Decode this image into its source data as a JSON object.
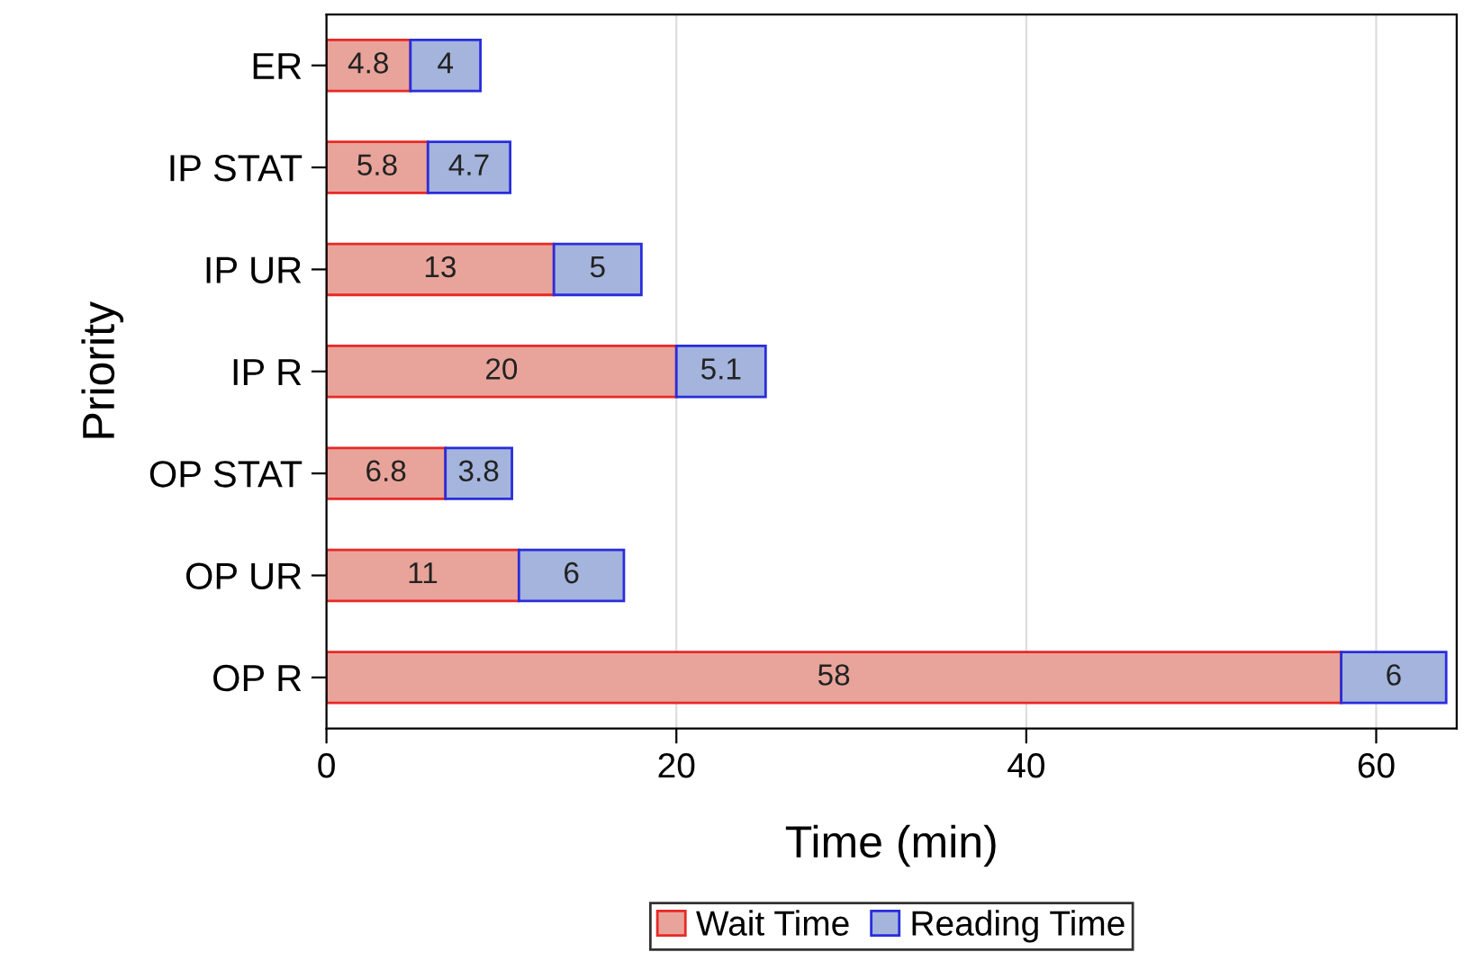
{
  "chart_data": {
    "type": "bar",
    "orientation": "horizontal",
    "stacked": true,
    "xlabel": "Time (min)",
    "ylabel": "Priority",
    "categories": [
      "ER",
      "IP STAT",
      "IP UR",
      "IP R",
      "OP STAT",
      "OP UR",
      "OP R"
    ],
    "series": [
      {
        "name": "Wait Time",
        "color": "#e8a49a",
        "values": [
          4.8,
          5.8,
          13,
          20,
          6.8,
          11,
          58
        ]
      },
      {
        "name": "Reading Time",
        "color": "#a4b4dc",
        "values": [
          4,
          4.7,
          5,
          5.1,
          3.8,
          6,
          6
        ]
      }
    ],
    "xlim": [
      0,
      64.6
    ],
    "xticks": [
      0,
      20,
      40,
      60
    ],
    "grid": "x",
    "legend": "bottom",
    "data_labels": true
  }
}
